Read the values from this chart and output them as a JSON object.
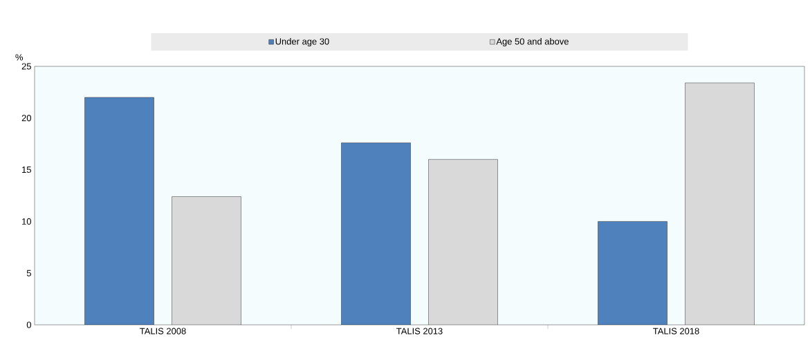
{
  "chart_data": {
    "type": "bar",
    "ylabel": "%",
    "categories": [
      "TALIS 2008",
      "TALIS 2013",
      "TALIS 2018"
    ],
    "series": [
      {
        "name": "Under age 30",
        "color": "#4f81bd",
        "values": [
          22.0,
          17.6,
          10.0
        ]
      },
      {
        "name": "Age 50 and above",
        "color": "#d9d9d9",
        "values": [
          12.4,
          16.0,
          23.4
        ]
      }
    ],
    "ylim": [
      0,
      25
    ],
    "yticks": [
      0,
      5,
      10,
      15,
      20,
      25
    ],
    "legend": "top",
    "grid": false
  }
}
